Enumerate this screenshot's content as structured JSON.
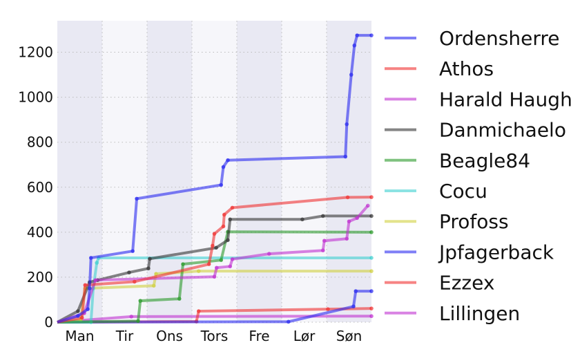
{
  "chart_data": {
    "type": "line",
    "xlabel": "",
    "ylabel": "",
    "xlim": [
      0,
      7
    ],
    "ylim": [
      0,
      1340
    ],
    "grid": true,
    "legend_placement": "outside-right",
    "xticks": [
      {
        "at": 0.5,
        "label": "Man"
      },
      {
        "at": 1.5,
        "label": "Tir"
      },
      {
        "at": 2.5,
        "label": "Ons"
      },
      {
        "at": 3.5,
        "label": "Tors"
      },
      {
        "at": 4.5,
        "label": "Fre"
      },
      {
        "at": 5.5,
        "label": "Lør"
      },
      {
        "at": 6.5,
        "label": "Søn"
      }
    ],
    "yticks": [
      0,
      200,
      400,
      600,
      800,
      1000,
      1200
    ],
    "shaded_days": [
      0,
      2,
      4,
      6
    ],
    "series": [
      {
        "name": "Ordensherre",
        "color": "#2a2af0",
        "points": [
          [
            0,
            0
          ],
          [
            0.46,
            28
          ],
          [
            0.68,
            58
          ],
          [
            0.72,
            150
          ],
          [
            0.75,
            286
          ],
          [
            1.68,
            316
          ],
          [
            1.77,
            549
          ],
          [
            3.65,
            610
          ],
          [
            3.7,
            690
          ],
          [
            3.8,
            720
          ],
          [
            6.42,
            736
          ],
          [
            6.45,
            880
          ],
          [
            6.55,
            1100
          ],
          [
            6.62,
            1230
          ],
          [
            6.68,
            1275
          ],
          [
            7,
            1275
          ]
        ]
      },
      {
        "name": "Athos",
        "color": "#f03030",
        "points": [
          [
            0,
            0
          ],
          [
            0.55,
            20
          ],
          [
            0.62,
            165
          ],
          [
            1.72,
            180
          ],
          [
            3.38,
            258
          ],
          [
            3.46,
            340
          ],
          [
            3.5,
            393
          ],
          [
            3.7,
            426
          ],
          [
            3.72,
            478
          ],
          [
            3.9,
            509
          ],
          [
            6.47,
            555
          ],
          [
            7,
            556
          ]
        ]
      },
      {
        "name": "Harald Haugh",
        "color": "#c030d0",
        "points": [
          [
            0,
            0
          ],
          [
            0.6,
            40
          ],
          [
            0.85,
            187
          ],
          [
            3.5,
            202
          ],
          [
            3.55,
            242
          ],
          [
            3.85,
            248
          ],
          [
            3.9,
            280
          ],
          [
            4.72,
            304
          ],
          [
            5.92,
            319
          ],
          [
            5.95,
            362
          ],
          [
            6.45,
            371
          ],
          [
            6.5,
            448
          ],
          [
            6.68,
            463
          ],
          [
            6.92,
            518
          ]
        ]
      },
      {
        "name": "Danmichaelo",
        "color": "#333333",
        "points": [
          [
            0,
            0
          ],
          [
            0.46,
            49
          ],
          [
            0.72,
            178
          ],
          [
            0.9,
            187
          ],
          [
            1.6,
            221
          ],
          [
            2.03,
            239
          ],
          [
            2.06,
            282
          ],
          [
            3.54,
            331
          ],
          [
            3.8,
            365
          ],
          [
            3.85,
            457
          ],
          [
            5.46,
            457
          ],
          [
            5.92,
            472
          ],
          [
            7,
            472
          ]
        ]
      },
      {
        "name": "Beagle84",
        "color": "#2a9a2a",
        "points": [
          [
            0,
            0
          ],
          [
            1.8,
            5
          ],
          [
            1.85,
            95
          ],
          [
            2.72,
            104
          ],
          [
            2.8,
            258
          ],
          [
            3.65,
            276
          ],
          [
            3.8,
            402
          ],
          [
            7,
            400
          ]
        ]
      },
      {
        "name": "Cocu",
        "color": "#40d0d0",
        "points": [
          [
            0,
            0
          ],
          [
            0.75,
            0
          ],
          [
            0.8,
            150
          ],
          [
            0.88,
            264
          ],
          [
            0.92,
            286
          ],
          [
            7,
            286
          ]
        ]
      },
      {
        "name": "Profoss",
        "color": "#d0d040",
        "points": [
          [
            0,
            0
          ],
          [
            0.52,
            10
          ],
          [
            0.62,
            150
          ],
          [
            2.15,
            162
          ],
          [
            2.2,
            215
          ],
          [
            3.15,
            227
          ],
          [
            7,
            227
          ]
        ]
      },
      {
        "name": "Jpfagerback",
        "color": "#2a2af0",
        "points": [
          [
            0,
            0
          ],
          [
            5.15,
            2
          ],
          [
            6.6,
            70
          ],
          [
            6.65,
            138
          ],
          [
            7,
            138
          ]
        ]
      },
      {
        "name": "Ezzex",
        "color": "#f03030",
        "points": [
          [
            0,
            0
          ],
          [
            3.1,
            3
          ],
          [
            3.15,
            49
          ],
          [
            6.03,
            58
          ],
          [
            7,
            61
          ]
        ]
      },
      {
        "name": "Lillingen",
        "color": "#c030d0",
        "points": [
          [
            0,
            0
          ],
          [
            1.65,
            25
          ],
          [
            7,
            27
          ]
        ]
      }
    ]
  }
}
